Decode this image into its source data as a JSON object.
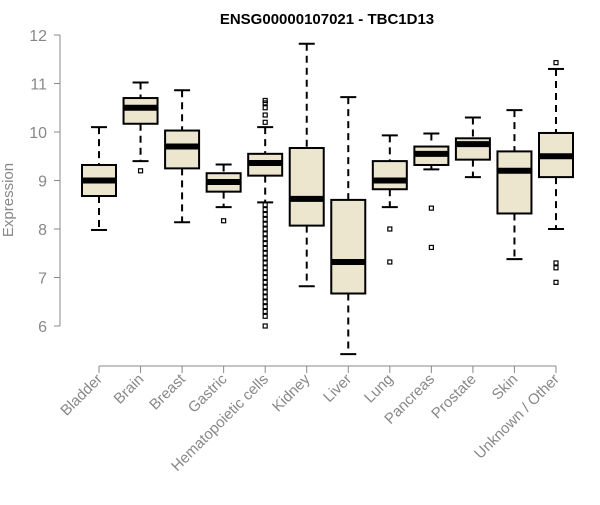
{
  "chart_data": {
    "type": "boxplot",
    "title": "ENSG00000107021 - TBC1D13",
    "xlabel": "",
    "ylabel": "Expression",
    "ylim": [
      5.4,
      12
    ],
    "yticks": [
      6,
      7,
      8,
      9,
      10,
      11,
      12
    ],
    "colors": {
      "box_fill": "#ede6cf",
      "stroke": "#000000",
      "axis": "#888888",
      "text": "#888888"
    },
    "categories": [
      "Bladder",
      "Brain",
      "Breast",
      "Gastric",
      "Hematopoietic cells",
      "Kidney",
      "Liver",
      "Lung",
      "Pancreas",
      "Prostate",
      "Skin",
      "Unknown / Other"
    ],
    "boxes": [
      {
        "name": "Bladder",
        "min": 7.98,
        "q1": 8.68,
        "median": 9.0,
        "q3": 9.32,
        "max": 10.1,
        "outliers": []
      },
      {
        "name": "Brain",
        "min": 9.4,
        "q1": 10.17,
        "median": 10.5,
        "q3": 10.7,
        "max": 11.02,
        "outliers": [
          9.2
        ]
      },
      {
        "name": "Breast",
        "min": 8.14,
        "q1": 9.25,
        "median": 9.7,
        "q3": 10.03,
        "max": 10.86,
        "outliers": []
      },
      {
        "name": "Gastric",
        "min": 8.45,
        "q1": 8.77,
        "median": 8.97,
        "q3": 9.15,
        "max": 9.33,
        "outliers": [
          8.17
        ]
      },
      {
        "name": "Hematopoietic cells",
        "min": 8.55,
        "q1": 9.1,
        "median": 9.36,
        "q3": 9.55,
        "max": 10.1,
        "outliers": [
          10.2,
          10.35,
          10.5,
          10.6,
          10.65,
          8.5,
          8.4,
          8.3,
          8.2,
          8.1,
          8.0,
          7.9,
          7.8,
          7.7,
          7.6,
          7.5,
          7.4,
          7.3,
          7.2,
          7.1,
          7.0,
          6.9,
          6.8,
          6.7,
          6.6,
          6.5,
          6.4,
          6.3,
          6.2,
          6.0
        ]
      },
      {
        "name": "Kidney",
        "min": 6.82,
        "q1": 8.07,
        "median": 8.62,
        "q3": 9.67,
        "max": 11.82,
        "outliers": []
      },
      {
        "name": "Liver",
        "min": 5.42,
        "q1": 6.67,
        "median": 7.32,
        "q3": 8.6,
        "max": 10.72,
        "outliers": []
      },
      {
        "name": "Lung",
        "min": 8.45,
        "q1": 8.82,
        "median": 9.0,
        "q3": 9.4,
        "max": 9.93,
        "outliers": [
          7.32,
          8.0
        ]
      },
      {
        "name": "Pancreas",
        "min": 9.23,
        "q1": 9.32,
        "median": 9.55,
        "q3": 9.7,
        "max": 9.97,
        "outliers": [
          8.43,
          7.62
        ]
      },
      {
        "name": "Prostate",
        "min": 9.07,
        "q1": 9.43,
        "median": 9.75,
        "q3": 9.87,
        "max": 10.3,
        "outliers": []
      },
      {
        "name": "Skin",
        "min": 7.38,
        "q1": 8.32,
        "median": 9.2,
        "q3": 9.6,
        "max": 10.45,
        "outliers": []
      },
      {
        "name": "Unknown / Other",
        "min": 8.0,
        "q1": 9.07,
        "median": 9.5,
        "q3": 9.98,
        "max": 11.3,
        "outliers": [
          11.43,
          7.3,
          7.2,
          6.9
        ]
      }
    ]
  }
}
